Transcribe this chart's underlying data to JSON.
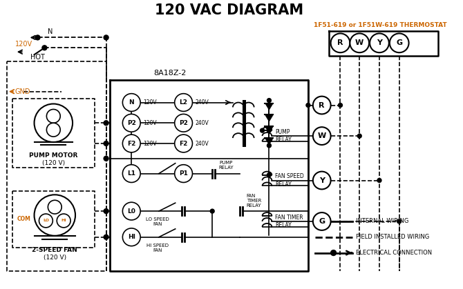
{
  "title": "120 VAC DIAGRAM",
  "title_fontsize": 15,
  "title_fontweight": "bold",
  "bg_color": "#ffffff",
  "line_color": "#000000",
  "orange_color": "#cc6600",
  "thermostat_label": "1F51-619 or 1F51W-619 THERMOSTAT",
  "board_label": "8A18Z-2",
  "legend_items": [
    {
      "label": "INTERNAL WIRING"
    },
    {
      "label": "FIELD INSTALLED WIRING"
    },
    {
      "label": "ELECTRICAL CONNECTION"
    }
  ],
  "terminal_labels": [
    "R",
    "W",
    "Y",
    "G"
  ],
  "voltage_left": [
    "120V",
    "120V",
    "120V"
  ],
  "voltage_right": [
    "240V",
    "240V",
    "240V"
  ]
}
